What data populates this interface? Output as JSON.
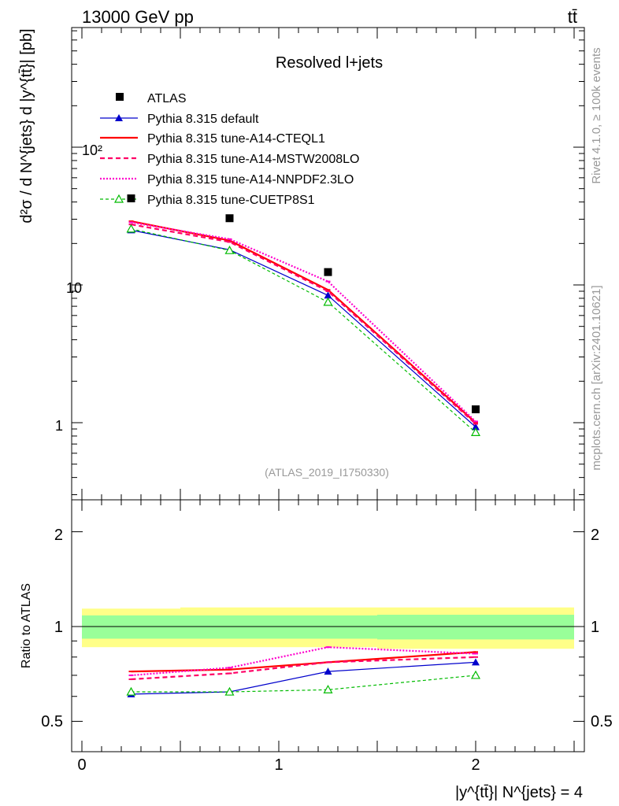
{
  "header": {
    "energy_label": "13000 GeV pp",
    "process_label": "tt̄"
  },
  "side_labels": {
    "rivet": "Rivet 4.1.0, ≥ 100k events",
    "mcplots": "mcplots.cern.ch [arXiv:2401.10621]"
  },
  "colors": {
    "atlas": "#000000",
    "default": "#0000cc",
    "cteql1": "#ff0000",
    "mstw": "#ff0066",
    "nnpdf": "#ff00cc",
    "cuetp8s1": "#00bb00",
    "band_inner": "#99ff99",
    "band_outer": "#ffff88"
  },
  "chart_data": [
    {
      "type": "line",
      "panel": "main",
      "title": "Resolved l+jets",
      "analysis_label": "(ATLAS_2019_I1750330)",
      "ylabel": "d²σ / d N^{jets} d |y^{tt̄}| [pb]",
      "yscale": "log",
      "ylim": [
        0.3,
        900
      ],
      "xlim": [
        -0.05,
        2.55
      ],
      "ytick_labels": [
        "1",
        "10",
        "10²"
      ],
      "legend_position": "top-left",
      "x": [
        0.25,
        0.75,
        1.25,
        2.0
      ],
      "series": [
        {
          "name": "ATLAS",
          "key": "atlas",
          "values": [
            42.5,
            30.5,
            12.4,
            1.25
          ]
        },
        {
          "name": "Pythia 8.315 default",
          "key": "default",
          "values": [
            25.0,
            18.0,
            8.4,
            0.93
          ]
        },
        {
          "name": "Pythia 8.315 tune-A14-CTEQL1",
          "key": "cteql1",
          "values": [
            29.0,
            21.0,
            9.2,
            1.0
          ]
        },
        {
          "name": "Pythia 8.315 tune-A14-MSTW2008LO",
          "key": "mstw",
          "values": [
            27.5,
            20.5,
            9.0,
            0.98
          ]
        },
        {
          "name": "Pythia 8.315 tune-A14-NNPDF2.3LO",
          "key": "nnpdf",
          "values": [
            28.5,
            21.5,
            10.6,
            1.02
          ]
        },
        {
          "name": "Pythia 8.315 tune-CUETP8S1",
          "key": "cuetp8s1",
          "values": [
            25.5,
            17.8,
            7.5,
            0.85
          ]
        }
      ]
    },
    {
      "type": "line",
      "panel": "ratio",
      "ylabel": "Ratio to ATLAS",
      "xlabel": "|y^{tt̄}| N^{jets} = 4",
      "ylim": [
        0.4,
        2.35
      ],
      "xlim": [
        -0.05,
        2.55
      ],
      "xtick_labels": [
        "0",
        "1",
        "2"
      ],
      "ytick_labels": [
        "0.5",
        "1",
        "2"
      ],
      "band_edges": [
        0.0,
        0.5,
        1.5,
        2.5
      ],
      "band_inner": [
        [
          0.915,
          1.085
        ],
        [
          0.915,
          1.085
        ],
        [
          0.91,
          1.09
        ]
      ],
      "band_outer": [
        [
          0.86,
          1.14
        ],
        [
          0.86,
          1.15
        ],
        [
          0.85,
          1.15
        ]
      ],
      "x": [
        0.25,
        0.75,
        1.25,
        2.0
      ],
      "series": [
        {
          "name": "Pythia 8.315 default",
          "key": "default",
          "values": [
            0.61,
            0.62,
            0.72,
            0.77
          ]
        },
        {
          "name": "Pythia 8.315 tune-A14-CTEQL1",
          "key": "cteql1",
          "values": [
            0.72,
            0.73,
            0.77,
            0.83
          ]
        },
        {
          "name": "Pythia 8.315 tune-A14-MSTW2008LO",
          "key": "mstw",
          "values": [
            0.68,
            0.71,
            0.77,
            0.8
          ]
        },
        {
          "name": "Pythia 8.315 tune-A14-NNPDF2.3LO",
          "key": "nnpdf",
          "values": [
            0.7,
            0.74,
            0.86,
            0.82
          ]
        },
        {
          "name": "Pythia 8.315 tune-CUETP8S1",
          "key": "cuetp8s1",
          "values": [
            0.62,
            0.62,
            0.63,
            0.7
          ]
        }
      ]
    }
  ]
}
